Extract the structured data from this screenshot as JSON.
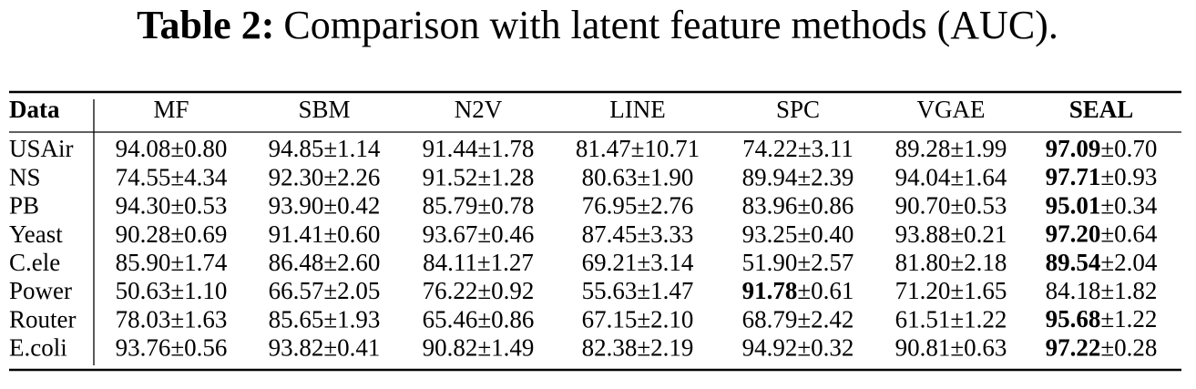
{
  "title": {
    "label": "Table 2:",
    "text": "Comparison with latent feature methods (AUC)."
  },
  "table": {
    "header": [
      "Data",
      "MF",
      "SBM",
      "N2V",
      "LINE",
      "SPC",
      "VGAE",
      "SEAL"
    ],
    "rows": [
      [
        "USAir",
        "94.08±0.80",
        "94.85±1.14",
        "91.44±1.78",
        "81.47±10.71",
        "74.22±3.11",
        "89.28±1.99",
        {
          "bold": "97.09",
          "rest": "±0.70"
        }
      ],
      [
        "NS",
        "74.55±4.34",
        "92.30±2.26",
        "91.52±1.28",
        "80.63±1.90",
        "89.94±2.39",
        "94.04±1.64",
        {
          "bold": "97.71",
          "rest": "±0.93"
        }
      ],
      [
        "PB",
        "94.30±0.53",
        "93.90±0.42",
        "85.79±0.78",
        "76.95±2.76",
        "83.96±0.86",
        "90.70±0.53",
        {
          "bold": "95.01",
          "rest": "±0.34"
        }
      ],
      [
        "Yeast",
        "90.28±0.69",
        "91.41±0.60",
        "93.67±0.46",
        "87.45±3.33",
        "93.25±0.40",
        "93.88±0.21",
        {
          "bold": "97.20",
          "rest": "±0.64"
        }
      ],
      [
        "C.ele",
        "85.90±1.74",
        "86.48±2.60",
        "84.11±1.27",
        "69.21±3.14",
        "51.90±2.57",
        "81.80±2.18",
        {
          "bold": "89.54",
          "rest": "±2.04"
        }
      ],
      [
        "Power",
        "50.63±1.10",
        "66.57±2.05",
        "76.22±0.92",
        "55.63±1.47",
        {
          "bold": "91.78",
          "rest": "±0.61"
        },
        "71.20±1.65",
        "84.18±1.82"
      ],
      [
        "Router",
        "78.03±1.63",
        "85.65±1.93",
        "65.46±0.86",
        "67.15±2.10",
        "68.79±2.42",
        "61.51±1.22",
        {
          "bold": "95.68",
          "rest": "±1.22"
        }
      ],
      [
        "E.coli",
        "93.76±0.56",
        "93.82±0.41",
        "90.82±1.49",
        "82.38±2.19",
        "94.92±0.32",
        "90.81±0.63",
        {
          "bold": "97.22",
          "rest": "±0.28"
        }
      ]
    ]
  }
}
